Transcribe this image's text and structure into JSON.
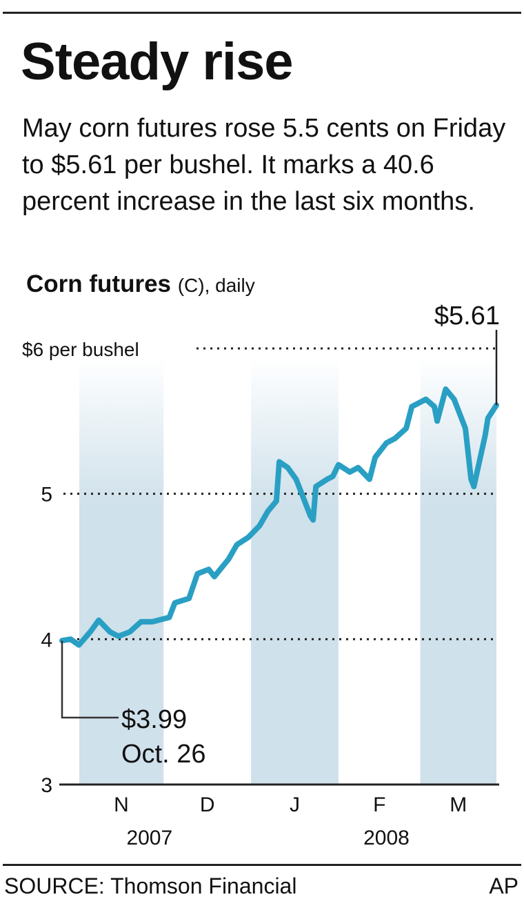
{
  "title": "Steady rise",
  "subtitle": "May corn futures rose 5.5 cents on Friday to $5.61 per bushel. It marks a 40.6 percent increase in the last six months.",
  "footer": {
    "source": "SOURCE: Thomson Financial",
    "credit": "AP"
  },
  "colors": {
    "line": "#2a9fc4",
    "band": "#cfe1eb"
  },
  "chart_data": {
    "type": "line",
    "title": "Corn futures",
    "title_suffix": "(C), daily",
    "ylabel": "$ per bushel",
    "ylim": [
      3,
      6
    ],
    "yticks": [
      {
        "v": 6,
        "label": "$6 per bushel"
      },
      {
        "v": 5,
        "label": "5"
      },
      {
        "v": 4,
        "label": "4"
      },
      {
        "v": 3,
        "label": "3"
      }
    ],
    "xlim": [
      "2007-10-26",
      "2008-03-28"
    ],
    "months": [
      {
        "label": "N",
        "start": "2007-11-01",
        "end": "2007-12-01",
        "shaded": true
      },
      {
        "label": "D",
        "start": "2007-12-01",
        "end": "2008-01-01",
        "shaded": false
      },
      {
        "label": "J",
        "start": "2008-01-01",
        "end": "2008-02-01",
        "shaded": true
      },
      {
        "label": "F",
        "start": "2008-02-01",
        "end": "2008-03-01",
        "shaded": false
      },
      {
        "label": "M",
        "start": "2008-03-01",
        "end": "2008-03-28",
        "shaded": true
      }
    ],
    "years": [
      {
        "label": "2007",
        "at": "2007-11-26"
      },
      {
        "label": "2008",
        "at": "2008-02-18"
      }
    ],
    "annotations": {
      "start": {
        "value": "$3.99",
        "date": "Oct. 26"
      },
      "end": {
        "value": "$5.61"
      }
    },
    "series": [
      {
        "name": "Corn futures",
        "points": [
          [
            "2007-10-26",
            3.99
          ],
          [
            "2007-10-29",
            4.0
          ],
          [
            "2007-11-01",
            3.96
          ],
          [
            "2007-11-05",
            4.05
          ],
          [
            "2007-11-08",
            4.13
          ],
          [
            "2007-11-12",
            4.05
          ],
          [
            "2007-11-15",
            4.02
          ],
          [
            "2007-11-19",
            4.05
          ],
          [
            "2007-11-23",
            4.12
          ],
          [
            "2007-11-27",
            4.12
          ],
          [
            "2007-12-03",
            4.15
          ],
          [
            "2007-12-05",
            4.25
          ],
          [
            "2007-12-10",
            4.28
          ],
          [
            "2007-12-13",
            4.45
          ],
          [
            "2007-12-17",
            4.48
          ],
          [
            "2007-12-19",
            4.43
          ],
          [
            "2007-12-24",
            4.55
          ],
          [
            "2007-12-27",
            4.65
          ],
          [
            "2007-12-31",
            4.7
          ],
          [
            "2008-01-04",
            4.78
          ],
          [
            "2008-01-07",
            4.88
          ],
          [
            "2008-01-10",
            4.95
          ],
          [
            "2008-01-11",
            5.22
          ],
          [
            "2008-01-14",
            5.18
          ],
          [
            "2008-01-17",
            5.1
          ],
          [
            "2008-01-22",
            4.85
          ],
          [
            "2008-01-23",
            4.82
          ],
          [
            "2008-01-24",
            5.05
          ],
          [
            "2008-01-28",
            5.1
          ],
          [
            "2008-01-30",
            5.12
          ],
          [
            "2008-02-01",
            5.2
          ],
          [
            "2008-02-05",
            5.15
          ],
          [
            "2008-02-08",
            5.18
          ],
          [
            "2008-02-12",
            5.1
          ],
          [
            "2008-02-14",
            5.25
          ],
          [
            "2008-02-18",
            5.35
          ],
          [
            "2008-02-21",
            5.38
          ],
          [
            "2008-02-25",
            5.45
          ],
          [
            "2008-02-27",
            5.6
          ],
          [
            "2008-03-03",
            5.65
          ],
          [
            "2008-03-06",
            5.6
          ],
          [
            "2008-03-07",
            5.5
          ],
          [
            "2008-03-10",
            5.72
          ],
          [
            "2008-03-13",
            5.65
          ],
          [
            "2008-03-17",
            5.45
          ],
          [
            "2008-03-19",
            5.1
          ],
          [
            "2008-03-20",
            5.05
          ],
          [
            "2008-03-24",
            5.4
          ],
          [
            "2008-03-25",
            5.52
          ],
          [
            "2008-03-28",
            5.61
          ]
        ]
      }
    ]
  }
}
